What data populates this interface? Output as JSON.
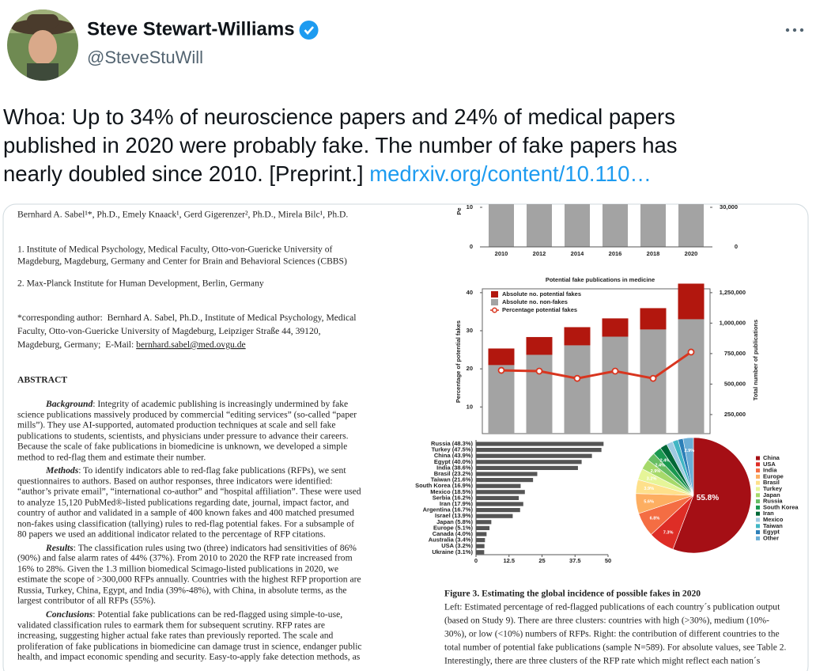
{
  "author": {
    "name": "Steve Stewart-Williams",
    "handle": "@SteveStuWill"
  },
  "tweet": {
    "lines": [
      "Whoa: Up to 34% of neuroscience papers and 24% of medical papers",
      "published in 2020 were probably fake. The number of fake papers has",
      "nearly doubled since 2010. [Preprint.] "
    ],
    "link": "medrxiv.org/content/10.110…"
  },
  "paper": {
    "authors": "Bernhard A. Sabel¹*, Ph.D., Emely Knaack¹, Gerd Gigerenzer², Ph.D., Mirela Bilc¹, Ph.D.",
    "affiliations": [
      "1. Institute of Medical Psychology, Medical Faculty, Otto-von-Guericke University of",
      "Magdeburg, Magdeburg, Germany and Center for Brain and Behavioral Sciences (CBBS)",
      "2. Max-Planck Institute for Human Development, Berlin, Germany"
    ],
    "corresponding": [
      "*corresponding author:  Bernhard A. Sabel, Ph.D., Institute of Medical Psychology, Medical",
      "Faculty, Otto-von-Guericke University of Magdeburg, Leipziger Straße 44, 39120,",
      "Magdeburg, Germany;  E-Mail: "
    ],
    "email": "bernhard.sabel@med.ovgu.de",
    "abstract_heading": "ABSTRACT",
    "abstract": [
      {
        "heading": "Background",
        "text": ": Integrity of academic publishing is increasingly undermined by fake"
      },
      "science publications massively produced by commercial “editing services” (so-called “paper",
      "mills”). They use AI-supported, automated production techniques at scale and sell fake",
      "publications to students, scientists, and physicians under pressure to advance their careers.",
      "Because the scale of fake publications in biomedicine is unknown, we developed a simple",
      "method to red-flag them and estimate their number.",
      {
        "heading": "Methods",
        "text": ": To identify indicators able to red-flag fake publications (RFPs), we sent"
      },
      "questionnaires to authors. Based on author responses, three indicators were identified:",
      "“author’s private email”, “international co-author” and “hospital affiliation”. These were used",
      "to analyze 15,120 PubMed®-listed publications regarding date, journal, impact factor, and",
      "country of author and validated in a sample of 400 known fakes and 400 matched presumed",
      "non-fakes using classification (tallying) rules to red-flag potential fakes. For a subsample of",
      "80 papers we used an additional indicator related to the percentage of RFP citations.",
      {
        "heading": "Results",
        "text": ": The classification rules using two (three) indicators had sensitivities of 86%"
      },
      "(90%) and false alarm rates of 44% (37%). From 2010 to 2020 the RFP rate increased from",
      "16% to 28%. Given the 1.3 million biomedical Scimago-listed publications in 2020, we",
      "estimate the scope of >300,000 RFPs annually. Countries with the highest RFP proportion are",
      "Russia, Turkey, China, Egypt, and India (39%-48%), with China, in absolute terms, as the",
      "largest contributor of all RFPs (55%).",
      {
        "heading": "Conclusions",
        "text": ": Potential fake publications can be red-flagged using simple-to-use,"
      },
      "validated classification rules to earmark them for subsequent scrutiny. RFP rates are",
      "increasing, suggesting higher actual fake rates than previously reported. The scale and",
      "proliferation of fake publications in biomedicine can damage trust in science, endanger public",
      "health, and impact economic spending and security. Easy-to-apply fake detection methods, as"
    ]
  },
  "top_chart": {
    "type": "bar",
    "y_label": "Pe",
    "categories": [
      "2010",
      "2012",
      "2014",
      "2016",
      "2018",
      "2020"
    ],
    "ylim": [
      0,
      11
    ],
    "yticks": [
      0,
      10
    ],
    "y2lim": [
      0,
      33000
    ],
    "y2ticks": [
      0,
      {
        "value": 30000,
        "label": "30,000"
      }
    ]
  },
  "fake_chart": {
    "type": "bar-line",
    "title": "Potential fake publications in medicine",
    "categories": [
      "2010",
      "2012",
      "2014",
      "2016",
      "2018",
      "2020"
    ],
    "series": [
      {
        "name": "Absolute no. potential fakes",
        "color": "#b2170e",
        "axis": "y2",
        "values": [
          136000,
          146000,
          149000,
          150000,
          175000,
          292000
        ]
      },
      {
        "name": "Absolute no. non-fakes",
        "color": "#a3a3a3",
        "axis": "y2",
        "values": [
          562000,
          646000,
          724000,
          795000,
          854000,
          938000
        ]
      },
      {
        "name": "Percentage potential fakes",
        "color": "#d8351f",
        "type": "line",
        "values": [
          19.6,
          19.4,
          17.5,
          19.4,
          17.5,
          24.4
        ]
      }
    ],
    "ylim": [
      3,
      41
    ],
    "yticks": [
      10,
      20,
      30,
      40
    ],
    "y2lim": [
      93750,
      1281250
    ],
    "y2ticks": [
      {
        "value": 250000,
        "label": "250,000"
      },
      {
        "value": 500000,
        "label": "500,000"
      },
      {
        "value": 750000,
        "label": "750,000"
      },
      {
        "value": 1000000,
        "label": "1,000,000"
      },
      {
        "value": 1250000,
        "label": "1,250,000"
      }
    ],
    "y_label": "Percentage of potential fakes",
    "y2_label": "Total number of publications"
  },
  "country_chart": {
    "type": "hbar",
    "color": "#555555",
    "categories": [
      "Russia (48.3%)",
      "Turkey (47.5%)",
      "China (43.9%)",
      "Egypt (40.0%)",
      "India (38.6%)",
      "Brasil (23.2%)",
      "Taiwan (21.6%)",
      "South Korea (16.9%)",
      "Mexico (18.5%)",
      "Serbia (16.2%)",
      "Iran (17.9%)",
      "Argentina (16.7%)",
      "Israel (13.9%)",
      "Japan (5.8%)",
      "Europe (5.1%)",
      "Canada (4.0%)",
      "Australia (3.4%)",
      "USA (3.2%)",
      "Ukraine (3.1%)"
    ],
    "values": [
      48.3,
      47.5,
      43.9,
      40.0,
      38.6,
      23.2,
      21.6,
      16.9,
      18.5,
      16.2,
      17.9,
      16.7,
      13.9,
      5.8,
      5.1,
      4.0,
      3.4,
      3.2,
      3.1
    ],
    "xlim": [
      0,
      50
    ],
    "xticks": [
      0,
      12.5,
      25,
      37.5,
      50
    ]
  },
  "pie_chart": {
    "type": "pie",
    "categories": [
      "China",
      "USA",
      "India",
      "Europe",
      "Brasil",
      "Turkey",
      "Japan",
      "Russia",
      "South Korea",
      "Iran",
      "Mexico",
      "Taiwan",
      "Egypt",
      "Other"
    ],
    "values": [
      55.8,
      7.3,
      6.8,
      5.6,
      3.9,
      3.2,
      2.9,
      2.4,
      2.4,
      2.0,
      1.8,
      1.6,
      1.4,
      2.9
    ],
    "value_labels": [
      "55.8%",
      "7.3%",
      "6.8%",
      "5.6%",
      "3.9%",
      "3.2%",
      "2.9%",
      "2.4%",
      "2.4%",
      null,
      null,
      null,
      null,
      "2.9%"
    ],
    "colors": [
      "#a50f15",
      "#de2d26",
      "#f46d43",
      "#fdae61",
      "#fee08b",
      "#e6f598",
      "#a6d96a",
      "#66bd63",
      "#1a9850",
      "#006837",
      "#9ecae1",
      "#41b6c4",
      "#2c7fb8",
      "#6baed6"
    ]
  },
  "caption": {
    "title": "Figure 3. Estimating the global incidence of possible fakes in 2020",
    "lines": [
      "Left: Estimated percentage of red-flagged publications of each country´s publication output",
      "(based on Study 9). There are three clusters: countries with high (>30%), medium (10%-",
      "30%), or low (<10%) numbers of RFPs. Right: the contribution of different countries to the",
      "total number of potential fake publications (sample N=589). For absolute values, see Table 2.",
      "Interestingly, there are three clusters of the RFP rate which might reflect each nation´s"
    ]
  }
}
